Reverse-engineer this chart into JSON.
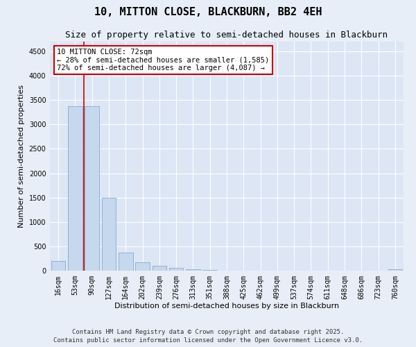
{
  "title_line1": "10, MITTON CLOSE, BLACKBURN, BB2 4EH",
  "title_line2": "Size of property relative to semi-detached houses in Blackburn",
  "xlabel": "Distribution of semi-detached houses by size in Blackburn",
  "ylabel": "Number of semi-detached properties",
  "categories": [
    "16sqm",
    "53sqm",
    "90sqm",
    "127sqm",
    "164sqm",
    "202sqm",
    "239sqm",
    "276sqm",
    "313sqm",
    "351sqm",
    "388sqm",
    "425sqm",
    "462sqm",
    "499sqm",
    "537sqm",
    "574sqm",
    "611sqm",
    "648sqm",
    "686sqm",
    "723sqm",
    "760sqm"
  ],
  "values": [
    200,
    3380,
    3380,
    1500,
    370,
    175,
    95,
    55,
    35,
    15,
    5,
    0,
    0,
    0,
    0,
    0,
    0,
    0,
    0,
    0,
    30
  ],
  "bar_color": "#c5d8ee",
  "bar_edge_color": "#7aa0c4",
  "vline_x": 1.5,
  "vline_color": "#cc0000",
  "annotation_text": "10 MITTON CLOSE: 72sqm\n← 28% of semi-detached houses are smaller (1,585)\n72% of semi-detached houses are larger (4,087) →",
  "annotation_box_color": "#ffffff",
  "annotation_box_edge": "#cc0000",
  "ylim": [
    0,
    4700
  ],
  "yticks": [
    0,
    500,
    1000,
    1500,
    2000,
    2500,
    3000,
    3500,
    4000,
    4500
  ],
  "background_color": "#e8eef7",
  "plot_bg_color": "#dce6f5",
  "footer_text": "Contains HM Land Registry data © Crown copyright and database right 2025.\nContains public sector information licensed under the Open Government Licence v3.0.",
  "title_fontsize": 11,
  "subtitle_fontsize": 9,
  "annotation_fontsize": 7.5,
  "footer_fontsize": 6.5,
  "tick_fontsize": 7,
  "axis_label_fontsize": 8
}
